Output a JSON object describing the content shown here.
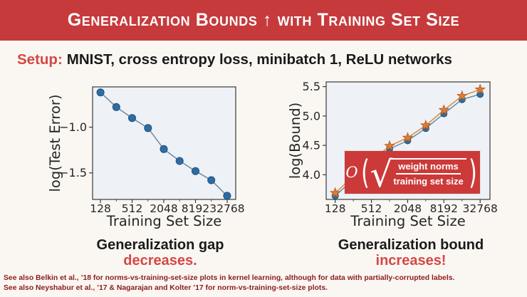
{
  "header": {
    "title": "Generalization Bounds ↑ with Training Set Size"
  },
  "setup": {
    "label": "Setup:",
    "text": "MNIST, cross entropy loss, minibatch 1, ReLU networks"
  },
  "captions": {
    "left": {
      "line1": "Generalization gap",
      "line2": "decreases."
    },
    "right": {
      "line1": "Generalization bound",
      "line2": "increases!"
    }
  },
  "formula": {
    "big_o": "O",
    "open_paren": "(",
    "radical": "√",
    "numerator": "weight norms",
    "denominator": "training set size",
    "close_paren": ")"
  },
  "footnotes": [
    "See also Belkin et al., ’18 for norms-vs-training-set-size plots in kernel learning, although for data with partially-corrupted labels.",
    "See also Neyshabur et al., ’17 & Nagarajan and Kolter ’17 for norm-vs-training-set-size plots."
  ],
  "colors": {
    "banner_red": "#c63a3c",
    "accent_red": "#d64744",
    "formula_box_red": "#cb3a38",
    "footnote_red": "#8c1d1d",
    "slide_bg": "#faf7f3",
    "plot_bg": "#eef1f5",
    "blue_marker": "#2e6da4",
    "orange_marker": "#e07b33"
  },
  "chart_data": [
    {
      "type": "line",
      "title": "",
      "xlabel": "Training Set Size",
      "ylabel": "log(Test Error)",
      "x_scale": "log2",
      "x": [
        128,
        256,
        512,
        1024,
        2048,
        4096,
        8192,
        16384,
        32768
      ],
      "xticks": [
        128,
        512,
        2048,
        8192,
        32768
      ],
      "ylim": [
        -1.79,
        -0.56
      ],
      "yticks": [
        -1.0,
        -1.5
      ],
      "grid": false,
      "legend": "none",
      "series": [
        {
          "name": "log test error",
          "marker": "circle",
          "marker_size": 5,
          "color": "#2e6da4",
          "edge_color": "#1d4f7c",
          "line_color": "#6d8aa3",
          "values": [
            -0.62,
            -0.78,
            -0.9,
            -1.01,
            -1.24,
            -1.37,
            -1.48,
            -1.58,
            -1.75
          ]
        }
      ]
    },
    {
      "type": "line",
      "title": "",
      "xlabel": "Training Set Size",
      "ylabel": "log(Bound)",
      "x_scale": "log2",
      "x": [
        128,
        256,
        512,
        1024,
        2048,
        4096,
        8192,
        16384,
        32768
      ],
      "xticks": [
        128,
        512,
        2048,
        8192,
        32768
      ],
      "ylim": [
        3.58,
        5.58
      ],
      "yticks": [
        4.0,
        4.5,
        5.0,
        5.5
      ],
      "grid": false,
      "legend": "none",
      "series": [
        {
          "name": "bound blue",
          "marker": "circle",
          "marker_size": 4.5,
          "color": "#2e6da4",
          "edge_color": "#1d4f7c",
          "line_color": "#5e8ca8",
          "values": [
            3.64,
            3.92,
            4.18,
            4.44,
            4.58,
            4.79,
            5.04,
            5.28,
            5.37
          ]
        },
        {
          "name": "bound orange",
          "marker": "star",
          "marker_size": 7,
          "color": "#e07b33",
          "edge_color": "#b35a1a",
          "line_color": "#dd8a3c",
          "values": [
            3.69,
            3.97,
            4.23,
            4.49,
            4.63,
            4.84,
            5.1,
            5.34,
            5.45
          ]
        }
      ]
    }
  ]
}
